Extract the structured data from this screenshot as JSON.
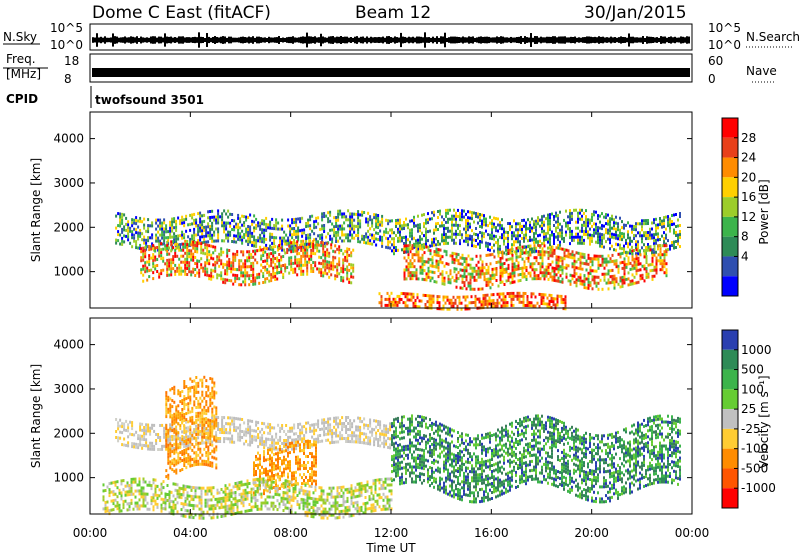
{
  "header": {
    "title": "Dome C East (fitACF)",
    "beam": "Beam 12",
    "date": "30/Jan/2015"
  },
  "params": {
    "nsky_label": "N.Sky",
    "nsearch_label": "N.Search",
    "nsky_ticks": [
      "10^5",
      "10^0"
    ],
    "nsearch_ticks": [
      "10^5",
      "10^0"
    ],
    "freq_label": "Freq.",
    "freq_unit": "[MHz]",
    "freq_ticks": [
      "18",
      "8"
    ],
    "nave_label": "Nave",
    "nave_ticks": [
      "60",
      "0"
    ],
    "cpid_label": "CPID",
    "cpid_value": "twofsound 3501"
  },
  "chart_data": [
    {
      "type": "heatmap",
      "name": "power",
      "ylabel": "Slant Range [km]",
      "xlabel": "",
      "ylim": [
        180,
        4600
      ],
      "xlim": [
        0,
        24
      ],
      "yticks": [
        "4000",
        "3000",
        "2000",
        "1000"
      ],
      "ytick_values": [
        4000,
        3000,
        2000,
        1000
      ],
      "colorbar": {
        "label": "Power [dB]",
        "ticks": [
          "28",
          "24",
          "20",
          "16",
          "12",
          "8",
          "4"
        ],
        "colors": [
          "#ff0000",
          "#e8401a",
          "#ff8c00",
          "#ffd000",
          "#9ccd2a",
          "#3cb44b",
          "#2e8b57",
          "#2f4fb0",
          "#0000ff"
        ]
      },
      "echo_bands": [
        {
          "t0": 1.0,
          "t1": 12.0,
          "r0": 1600,
          "r1": 2300,
          "level": "mixed"
        },
        {
          "t0": 12.0,
          "t1": 23.5,
          "r0": 1500,
          "r1": 2300,
          "level": "mixed"
        },
        {
          "t0": 2.0,
          "t1": 10.5,
          "r0": 800,
          "r1": 1600,
          "level": "strong"
        },
        {
          "t0": 12.5,
          "t1": 23.0,
          "r0": 700,
          "r1": 1500,
          "level": "strong"
        },
        {
          "t0": 11.5,
          "t1": 19.0,
          "r0": 200,
          "r1": 500,
          "level": "very_strong"
        }
      ]
    },
    {
      "type": "heatmap",
      "name": "velocity",
      "ylabel": "Slant Range [km]",
      "xlabel": "Time UT",
      "ylim": [
        180,
        4600
      ],
      "xlim": [
        0,
        24
      ],
      "yticks": [
        "4000",
        "3000",
        "2000",
        "1000"
      ],
      "ytick_values": [
        4000,
        3000,
        2000,
        1000
      ],
      "xticks": [
        "00:00",
        "04:00",
        "08:00",
        "12:00",
        "16:00",
        "20:00",
        "00:00"
      ],
      "xtick_values": [
        0,
        4,
        8,
        12,
        16,
        20,
        24
      ],
      "colorbar": {
        "label": "Velocity [m s⁻¹]",
        "ticks": [
          "1000",
          "500",
          "100",
          "25",
          "-25",
          "-100",
          "-500",
          "-1000"
        ],
        "colors": [
          "#2a3fb0",
          "#2e8b57",
          "#3cb44b",
          "#66cc33",
          "#c0c0c0",
          "#ffcc33",
          "#ff8c00",
          "#ff5500",
          "#ff0000"
        ]
      },
      "echo_bands": [
        {
          "t0": 1.0,
          "t1": 12.0,
          "r0": 1700,
          "r1": 2300,
          "level": "gray"
        },
        {
          "t0": 3.0,
          "t1": 5.0,
          "r0": 1000,
          "r1": 3000,
          "level": "orange"
        },
        {
          "t0": 6.5,
          "t1": 9.0,
          "r0": 700,
          "r1": 1700,
          "level": "orange"
        },
        {
          "t0": 12.0,
          "t1": 23.5,
          "r0": 700,
          "r1": 2200,
          "level": "green"
        },
        {
          "t0": 0.5,
          "t1": 12.0,
          "r0": 200,
          "r1": 900,
          "level": "lightgreen"
        }
      ]
    }
  ]
}
